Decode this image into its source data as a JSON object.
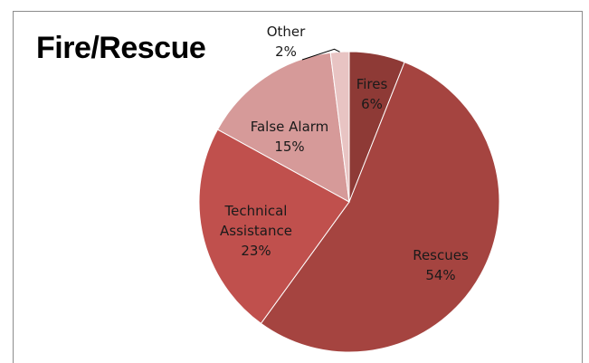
{
  "chart_data": {
    "type": "pie",
    "title": "Fire/Rescue",
    "slices": [
      {
        "label": "Fires",
        "value": 6,
        "pct_label": "6%",
        "color": "#8e3a36"
      },
      {
        "label": "Rescues",
        "value": 54,
        "pct_label": "54%",
        "color": "#a54440"
      },
      {
        "label": "Technical Assistance",
        "label_lines": [
          "Technical",
          "Assistance"
        ],
        "value": 23,
        "pct_label": "23%",
        "color": "#c0504d"
      },
      {
        "label": "False Alarm",
        "value": 15,
        "pct_label": "15%",
        "color": "#d69a99"
      },
      {
        "label": "Other",
        "value": 2,
        "pct_label": "2%",
        "color": "#e8c4c3"
      }
    ]
  }
}
